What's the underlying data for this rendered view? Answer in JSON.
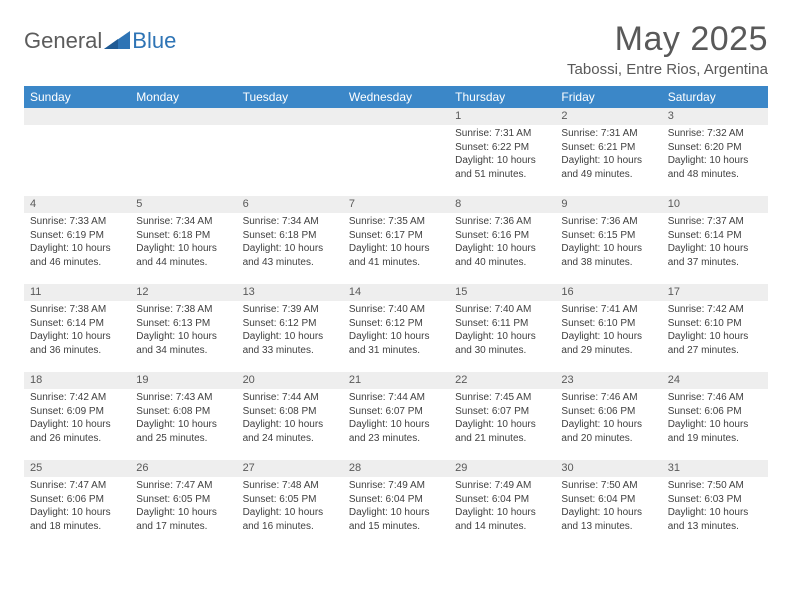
{
  "logo": {
    "text1": "General",
    "text2": "Blue"
  },
  "title": "May 2025",
  "location": "Tabossi, Entre Rios, Argentina",
  "weekdays": [
    "Sunday",
    "Monday",
    "Tuesday",
    "Wednesday",
    "Thursday",
    "Friday",
    "Saturday"
  ],
  "colors": {
    "header_bg": "#3b87c8",
    "date_bar_bg": "#eeeeee",
    "text_gray": "#595959",
    "logo_blue": "#2e74b5"
  },
  "weeks": [
    [
      {
        "empty": true
      },
      {
        "empty": true
      },
      {
        "empty": true
      },
      {
        "empty": true
      },
      {
        "date": "1",
        "sunrise": "Sunrise: 7:31 AM",
        "sunset": "Sunset: 6:22 PM",
        "daylight": "Daylight: 10 hours and 51 minutes."
      },
      {
        "date": "2",
        "sunrise": "Sunrise: 7:31 AM",
        "sunset": "Sunset: 6:21 PM",
        "daylight": "Daylight: 10 hours and 49 minutes."
      },
      {
        "date": "3",
        "sunrise": "Sunrise: 7:32 AM",
        "sunset": "Sunset: 6:20 PM",
        "daylight": "Daylight: 10 hours and 48 minutes."
      }
    ],
    [
      {
        "date": "4",
        "sunrise": "Sunrise: 7:33 AM",
        "sunset": "Sunset: 6:19 PM",
        "daylight": "Daylight: 10 hours and 46 minutes."
      },
      {
        "date": "5",
        "sunrise": "Sunrise: 7:34 AM",
        "sunset": "Sunset: 6:18 PM",
        "daylight": "Daylight: 10 hours and 44 minutes."
      },
      {
        "date": "6",
        "sunrise": "Sunrise: 7:34 AM",
        "sunset": "Sunset: 6:18 PM",
        "daylight": "Daylight: 10 hours and 43 minutes."
      },
      {
        "date": "7",
        "sunrise": "Sunrise: 7:35 AM",
        "sunset": "Sunset: 6:17 PM",
        "daylight": "Daylight: 10 hours and 41 minutes."
      },
      {
        "date": "8",
        "sunrise": "Sunrise: 7:36 AM",
        "sunset": "Sunset: 6:16 PM",
        "daylight": "Daylight: 10 hours and 40 minutes."
      },
      {
        "date": "9",
        "sunrise": "Sunrise: 7:36 AM",
        "sunset": "Sunset: 6:15 PM",
        "daylight": "Daylight: 10 hours and 38 minutes."
      },
      {
        "date": "10",
        "sunrise": "Sunrise: 7:37 AM",
        "sunset": "Sunset: 6:14 PM",
        "daylight": "Daylight: 10 hours and 37 minutes."
      }
    ],
    [
      {
        "date": "11",
        "sunrise": "Sunrise: 7:38 AM",
        "sunset": "Sunset: 6:14 PM",
        "daylight": "Daylight: 10 hours and 36 minutes."
      },
      {
        "date": "12",
        "sunrise": "Sunrise: 7:38 AM",
        "sunset": "Sunset: 6:13 PM",
        "daylight": "Daylight: 10 hours and 34 minutes."
      },
      {
        "date": "13",
        "sunrise": "Sunrise: 7:39 AM",
        "sunset": "Sunset: 6:12 PM",
        "daylight": "Daylight: 10 hours and 33 minutes."
      },
      {
        "date": "14",
        "sunrise": "Sunrise: 7:40 AM",
        "sunset": "Sunset: 6:12 PM",
        "daylight": "Daylight: 10 hours and 31 minutes."
      },
      {
        "date": "15",
        "sunrise": "Sunrise: 7:40 AM",
        "sunset": "Sunset: 6:11 PM",
        "daylight": "Daylight: 10 hours and 30 minutes."
      },
      {
        "date": "16",
        "sunrise": "Sunrise: 7:41 AM",
        "sunset": "Sunset: 6:10 PM",
        "daylight": "Daylight: 10 hours and 29 minutes."
      },
      {
        "date": "17",
        "sunrise": "Sunrise: 7:42 AM",
        "sunset": "Sunset: 6:10 PM",
        "daylight": "Daylight: 10 hours and 27 minutes."
      }
    ],
    [
      {
        "date": "18",
        "sunrise": "Sunrise: 7:42 AM",
        "sunset": "Sunset: 6:09 PM",
        "daylight": "Daylight: 10 hours and 26 minutes."
      },
      {
        "date": "19",
        "sunrise": "Sunrise: 7:43 AM",
        "sunset": "Sunset: 6:08 PM",
        "daylight": "Daylight: 10 hours and 25 minutes."
      },
      {
        "date": "20",
        "sunrise": "Sunrise: 7:44 AM",
        "sunset": "Sunset: 6:08 PM",
        "daylight": "Daylight: 10 hours and 24 minutes."
      },
      {
        "date": "21",
        "sunrise": "Sunrise: 7:44 AM",
        "sunset": "Sunset: 6:07 PM",
        "daylight": "Daylight: 10 hours and 23 minutes."
      },
      {
        "date": "22",
        "sunrise": "Sunrise: 7:45 AM",
        "sunset": "Sunset: 6:07 PM",
        "daylight": "Daylight: 10 hours and 21 minutes."
      },
      {
        "date": "23",
        "sunrise": "Sunrise: 7:46 AM",
        "sunset": "Sunset: 6:06 PM",
        "daylight": "Daylight: 10 hours and 20 minutes."
      },
      {
        "date": "24",
        "sunrise": "Sunrise: 7:46 AM",
        "sunset": "Sunset: 6:06 PM",
        "daylight": "Daylight: 10 hours and 19 minutes."
      }
    ],
    [
      {
        "date": "25",
        "sunrise": "Sunrise: 7:47 AM",
        "sunset": "Sunset: 6:06 PM",
        "daylight": "Daylight: 10 hours and 18 minutes."
      },
      {
        "date": "26",
        "sunrise": "Sunrise: 7:47 AM",
        "sunset": "Sunset: 6:05 PM",
        "daylight": "Daylight: 10 hours and 17 minutes."
      },
      {
        "date": "27",
        "sunrise": "Sunrise: 7:48 AM",
        "sunset": "Sunset: 6:05 PM",
        "daylight": "Daylight: 10 hours and 16 minutes."
      },
      {
        "date": "28",
        "sunrise": "Sunrise: 7:49 AM",
        "sunset": "Sunset: 6:04 PM",
        "daylight": "Daylight: 10 hours and 15 minutes."
      },
      {
        "date": "29",
        "sunrise": "Sunrise: 7:49 AM",
        "sunset": "Sunset: 6:04 PM",
        "daylight": "Daylight: 10 hours and 14 minutes."
      },
      {
        "date": "30",
        "sunrise": "Sunrise: 7:50 AM",
        "sunset": "Sunset: 6:04 PM",
        "daylight": "Daylight: 10 hours and 13 minutes."
      },
      {
        "date": "31",
        "sunrise": "Sunrise: 7:50 AM",
        "sunset": "Sunset: 6:03 PM",
        "daylight": "Daylight: 10 hours and 13 minutes."
      }
    ]
  ]
}
